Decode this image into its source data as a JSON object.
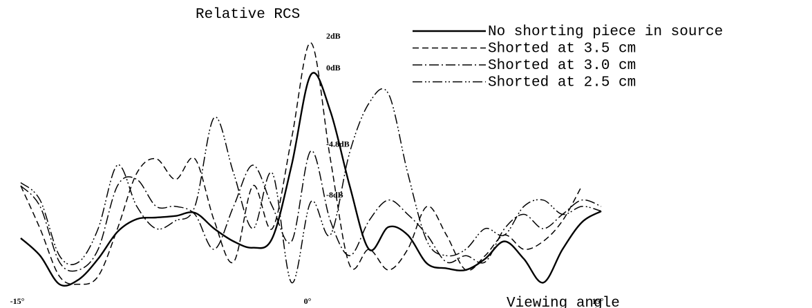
{
  "chart_data": {
    "type": "line",
    "title": "Relative RCS",
    "xlabel": "Viewing angle",
    "x": [
      -15,
      -14,
      -13,
      -12,
      -11,
      -10,
      -9,
      -8,
      -7,
      -6,
      -5,
      -4,
      -3,
      -2,
      -1,
      0,
      1,
      2,
      3,
      4,
      5,
      6,
      7,
      8,
      9,
      10,
      11,
      12,
      13,
      14,
      15
    ],
    "xlim": [
      -15.5,
      15.5
    ],
    "xticks": [
      {
        "value": -15,
        "label": "-15°"
      },
      {
        "value": 0,
        "label": "0°"
      },
      {
        "value": 15,
        "label": "15°"
      }
    ],
    "ylim": [
      -14,
      3
    ],
    "series": [
      {
        "name": "No shorting piece in source",
        "color": "#000000",
        "style": "solid",
        "width": 2.4,
        "values": [
          -10.3,
          -11.4,
          -13.2,
          -12.9,
          -11.6,
          -9.9,
          -9.1,
          -9.0,
          -8.9,
          -8.7,
          -9.7,
          -10.5,
          -10.9,
          -10.3,
          -5.7,
          0,
          -2.3,
          -7.0,
          -11.0,
          -9.6,
          -10.1,
          -11.9,
          -12.2,
          -12.3,
          -11.6,
          -10.5,
          -11.6,
          -13.1,
          -11.0,
          -9.3,
          -8.6
        ]
      },
      {
        "name": "Shorted at 3.5 cm",
        "color": "#000000",
        "style": "dashed",
        "width": 1.5,
        "values": [
          -7.0,
          -9.7,
          -12.7,
          -13.2,
          -12.7,
          -9.7,
          -6.2,
          -5.3,
          -6.6,
          -5.3,
          -9.2,
          -11.8,
          -7.0,
          -9.7,
          -4.0,
          2,
          -5.3,
          -12.0,
          -11.0,
          -12.3,
          -11.0,
          -8.3,
          -10.1,
          -12.3,
          -11.4,
          -10.1,
          -11.0,
          -10.5,
          -9.2,
          -7.0,
          null
        ]
      },
      {
        "name": "Shorted at 3.0 cm",
        "color": "#000000",
        "style": "dashdot",
        "width": 1.5,
        "values": [
          -7.0,
          -8.3,
          -11.8,
          -12.3,
          -11.0,
          -7.0,
          -6.6,
          -8.3,
          -8.3,
          -8.8,
          -11.0,
          -8.3,
          -5.7,
          -8.3,
          -10.5,
          -4.8,
          -9.2,
          -11.4,
          -9.2,
          -7.9,
          -8.8,
          -10.1,
          -11.8,
          -11.4,
          -11.8,
          -9.7,
          -8.8,
          -9.7,
          -8.8,
          -7.9,
          -8.3
        ]
      },
      {
        "name": "Shorted at 2.5 cm",
        "color": "#000000",
        "style": "dashdotdot",
        "width": 1.5,
        "values": [
          -6.8,
          -7.9,
          -11.4,
          -11.8,
          -9.7,
          -5.7,
          -8.3,
          -9.7,
          -9.2,
          -8.3,
          -2.7,
          -6.2,
          -9.7,
          -6.2,
          -13.1,
          -8,
          -10.1,
          -4.9,
          -1.8,
          -1.2,
          -6.2,
          -10.5,
          -11.4,
          -11.0,
          -9.7,
          -10.1,
          -8.3,
          -7.9,
          -8.8,
          -8.3,
          -8.6
        ]
      }
    ],
    "annotations": [
      {
        "text": "2dB",
        "x": 0,
        "y": 2
      },
      {
        "text": "0dB",
        "x": 0,
        "y": 0
      },
      {
        "text": "-4.8dB",
        "x": 0,
        "y": -4.8
      },
      {
        "text": "-8dB",
        "x": 0,
        "y": -8
      }
    ],
    "legend": "upper right"
  }
}
